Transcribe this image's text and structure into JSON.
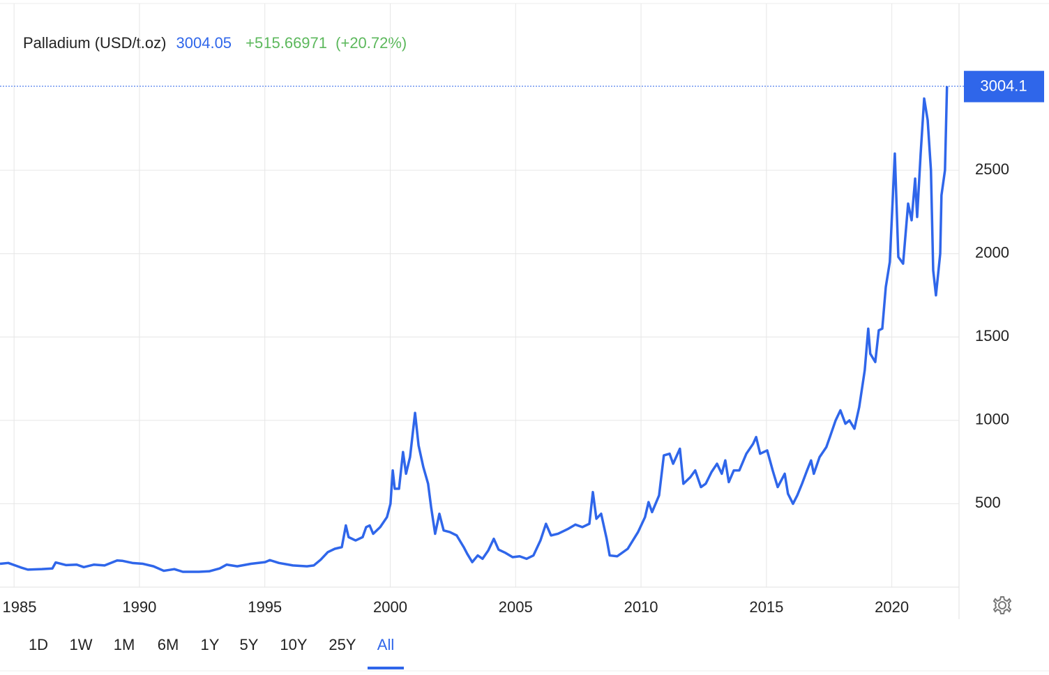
{
  "chart_data": {
    "type": "line",
    "title": "Palladium (USD/t.oz)",
    "price": 3004.05,
    "change": "+515.66971",
    "change_pct": "(+20.72%)",
    "color": "#2f66ea",
    "grid": true,
    "xlim": [
      1984.44,
      2022.68
    ],
    "xticks": [
      1985,
      1990,
      1995,
      2000,
      2005,
      2010,
      2015,
      2020
    ],
    "ylim": [
      0,
      3500
    ],
    "yticks": [
      500,
      1000,
      1500,
      2000,
      2500
    ],
    "last_label": {
      "value": 3004.05,
      "label": "3004.1"
    },
    "x": [
      1984.44,
      1984.77,
      1985.27,
      1985.55,
      1986.11,
      1986.53,
      1986.66,
      1987.08,
      1987.5,
      1987.78,
      1988.19,
      1988.61,
      1989.11,
      1989.31,
      1989.72,
      1990.14,
      1990.56,
      1990.97,
      1991.39,
      1991.73,
      1992.37,
      1992.78,
      1993.2,
      1993.48,
      1993.9,
      1994.45,
      1995.01,
      1995.2,
      1995.56,
      1996.12,
      1996.68,
      1996.95,
      1997.23,
      1997.51,
      1997.79,
      1998.07,
      1998.23,
      1998.34,
      1998.62,
      1998.9,
      1999.04,
      1999.18,
      1999.32,
      1999.6,
      1999.87,
      2000.01,
      2000.1,
      2000.18,
      2000.35,
      2000.51,
      2000.63,
      2000.79,
      2000.99,
      2001.13,
      2001.32,
      2001.51,
      2001.63,
      2001.79,
      2001.96,
      2002.13,
      2002.38,
      2002.65,
      2002.93,
      2003.07,
      2003.27,
      2003.49,
      2003.68,
      2003.91,
      2004.13,
      2004.32,
      2004.6,
      2004.88,
      2005.16,
      2005.44,
      2005.71,
      2005.99,
      2006.21,
      2006.41,
      2006.69,
      2007.1,
      2007.38,
      2007.66,
      2007.94,
      2008.08,
      2008.22,
      2008.41,
      2008.63,
      2008.75,
      2009.05,
      2009.47,
      2009.88,
      2010.16,
      2010.3,
      2010.44,
      2010.72,
      2010.91,
      2011.14,
      2011.28,
      2011.55,
      2011.69,
      2011.97,
      2012.16,
      2012.39,
      2012.58,
      2012.81,
      2013.03,
      2013.22,
      2013.36,
      2013.5,
      2013.7,
      2013.92,
      2014.2,
      2014.47,
      2014.59,
      2014.75,
      2015.03,
      2015.25,
      2015.45,
      2015.73,
      2015.86,
      2016.06,
      2016.23,
      2016.42,
      2016.62,
      2016.78,
      2016.89,
      2017.12,
      2017.39,
      2017.53,
      2017.76,
      2017.95,
      2018.15,
      2018.31,
      2018.51,
      2018.7,
      2018.92,
      2019.06,
      2019.14,
      2019.34,
      2019.48,
      2019.62,
      2019.76,
      2019.92,
      2020.12,
      2020.26,
      2020.45,
      2020.65,
      2020.79,
      2020.93,
      2021.01,
      2021.15,
      2021.29,
      2021.43,
      2021.56,
      2021.65,
      2021.76,
      2021.93,
      2021.98,
      2022.12,
      2022.2
    ],
    "values": [
      140,
      145,
      118,
      105,
      108,
      112,
      148,
      132,
      135,
      120,
      135,
      130,
      160,
      158,
      145,
      140,
      125,
      98,
      108,
      92,
      92,
      95,
      112,
      135,
      125,
      140,
      150,
      162,
      145,
      130,
      125,
      130,
      165,
      210,
      230,
      240,
      370,
      300,
      280,
      300,
      360,
      370,
      320,
      360,
      420,
      500,
      700,
      590,
      590,
      810,
      680,
      780,
      1045,
      850,
      720,
      620,
      480,
      320,
      440,
      340,
      330,
      310,
      240,
      200,
      150,
      190,
      170,
      220,
      290,
      225,
      205,
      180,
      185,
      170,
      190,
      280,
      380,
      310,
      320,
      350,
      375,
      360,
      380,
      570,
      410,
      440,
      290,
      190,
      185,
      230,
      330,
      420,
      510,
      450,
      550,
      790,
      800,
      740,
      830,
      620,
      660,
      700,
      600,
      620,
      690,
      740,
      680,
      760,
      630,
      700,
      700,
      800,
      860,
      900,
      800,
      820,
      700,
      600,
      680,
      560,
      500,
      550,
      620,
      700,
      760,
      680,
      780,
      840,
      900,
      1000,
      1060,
      980,
      1000,
      950,
      1080,
      1300,
      1550,
      1400,
      1350,
      1540,
      1550,
      1800,
      1950,
      2600,
      1980,
      1940,
      2300,
      2200,
      2450,
      2220,
      2600,
      2930,
      2800,
      2500,
      1900,
      1750,
      2000,
      2350,
      2500,
      3004.05
    ],
    "range_buttons": [
      {
        "label": "1D"
      },
      {
        "label": "1W"
      },
      {
        "label": "1M"
      },
      {
        "label": "6M"
      },
      {
        "label": "1Y"
      },
      {
        "label": "5Y"
      },
      {
        "label": "10Y"
      },
      {
        "label": "25Y"
      },
      {
        "label": "All",
        "selected": true
      }
    ]
  }
}
